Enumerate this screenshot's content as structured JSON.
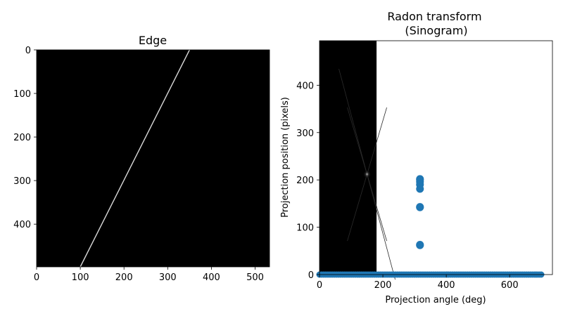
{
  "chart_data": [
    {
      "type": "image",
      "title": "Edge",
      "xlim": [
        0,
        533
      ],
      "ylim": [
        498,
        0
      ],
      "xticks": [
        0,
        100,
        200,
        300,
        400,
        500
      ],
      "yticks": [
        0,
        100,
        200,
        300,
        400
      ],
      "background": "#000000",
      "line": {
        "x": [
          350,
          100
        ],
        "y": [
          0,
          498
        ],
        "color": "#d9d9d9"
      }
    },
    {
      "type": "scatter",
      "title": "Radon transform\n(Sinogram)",
      "xlabel": "Projection angle (deg)",
      "ylabel": "Projection position (pixels)",
      "xlim": [
        0,
        735
      ],
      "ylim": [
        0,
        494
      ],
      "xticks": [
        0,
        200,
        400,
        600
      ],
      "yticks": [
        0,
        100,
        200,
        300,
        400
      ],
      "sinogram_image": {
        "x_range": [
          0,
          180
        ],
        "y_range": [
          0,
          494
        ],
        "peak": {
          "x": 150,
          "y": 212
        }
      },
      "marker_color": "#1f77b4",
      "points": [
        {
          "x": 317,
          "y": 200
        },
        {
          "x": 317,
          "y": 202
        },
        {
          "x": 317,
          "y": 196
        },
        {
          "x": 317,
          "y": 190
        },
        {
          "x": 317,
          "y": 181
        },
        {
          "x": 317,
          "y": 143
        },
        {
          "x": 317,
          "y": 142
        },
        {
          "x": 317,
          "y": 63
        },
        {
          "x": 317,
          "y": 62
        }
      ],
      "baseline": {
        "x": [
          0,
          700
        ],
        "y": 0
      }
    }
  ]
}
